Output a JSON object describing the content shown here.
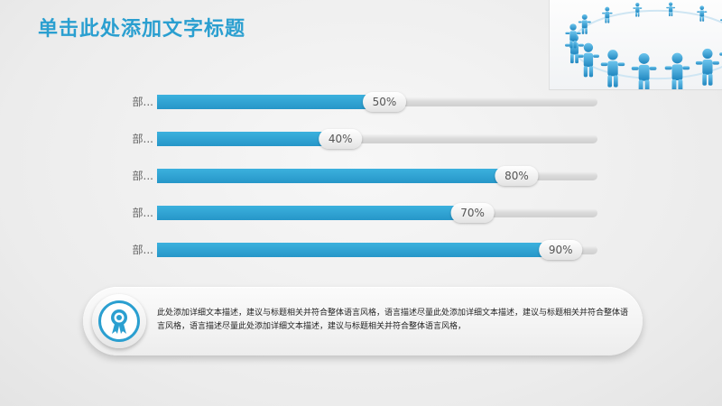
{
  "header": {
    "title": "单击此处添加文字标题"
  },
  "icons": {
    "corner": "people-circle-icon",
    "medal": "award-badge-icon"
  },
  "colors": {
    "accent": "#2a9fd0",
    "track": "#e2e2e2"
  },
  "chart_data": {
    "type": "bar",
    "orientation": "horizontal",
    "categories": [
      "部...",
      "部...",
      "部...",
      "部...",
      "部..."
    ],
    "values": [
      50,
      40,
      80,
      70,
      90
    ],
    "data_labels": [
      "50%",
      "40%",
      "80%",
      "70%",
      "90%"
    ],
    "xlim": [
      0,
      100
    ],
    "grid": false
  },
  "info": {
    "text": "此处添加详细文本描述，建议与标题相关并符合整体语言风格，语言描述尽量此处添加详细文本描述，建议与标题相关并符合整体语言风格，语言描述尽量此处添加详细文本描述，建议与标题相关并符合整体语言风格，"
  }
}
